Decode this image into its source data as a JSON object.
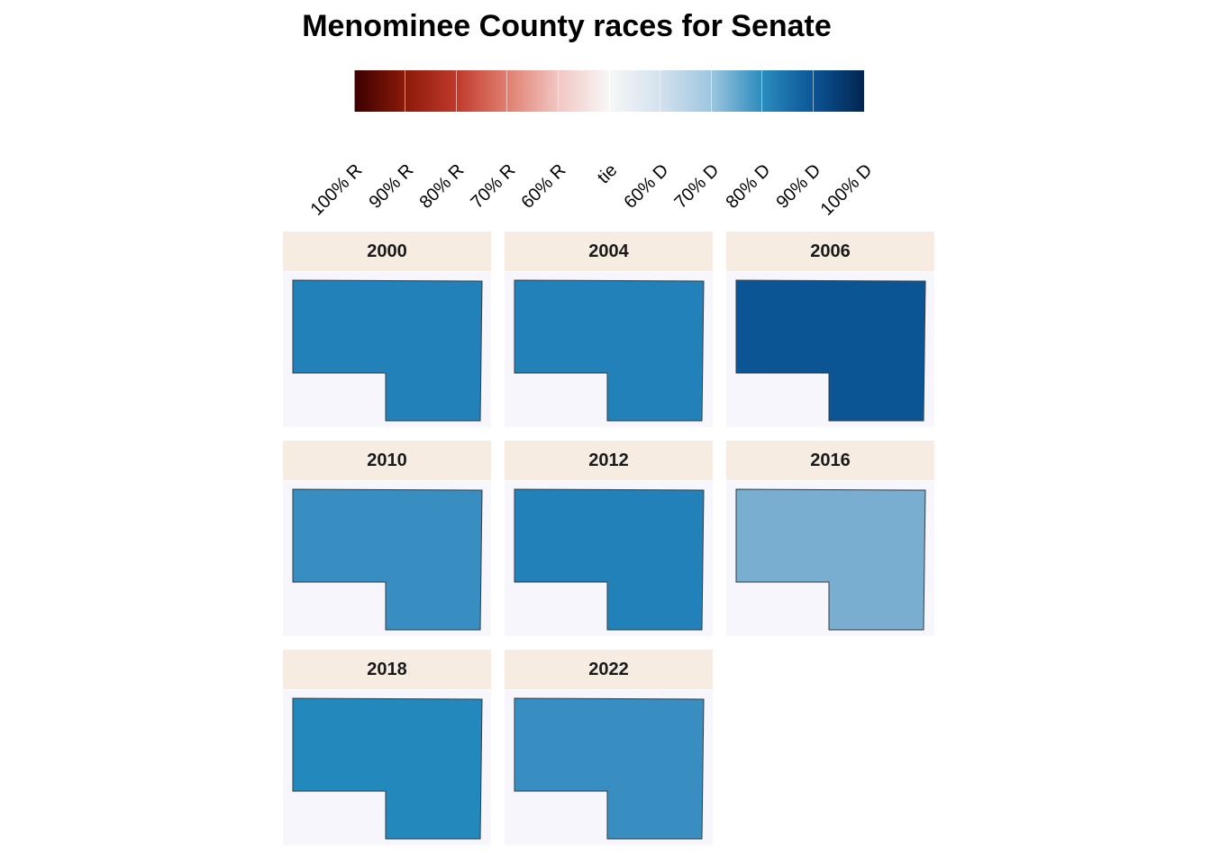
{
  "title": "Menominee County races for Senate",
  "legend": {
    "tick_labels": [
      "100% R",
      "90% R",
      "80% R",
      "70% R",
      "60% R",
      "tie",
      "60% D",
      "70% D",
      "80% D",
      "90% D",
      "100% D"
    ],
    "scale_colors": [
      "#3a0000",
      "#8b1a09",
      "#c0392b",
      "#e07f70",
      "#f1c6c2",
      "#f7f7f7",
      "#d3e2ee",
      "#9ec5df",
      "#2b8cbe",
      "#0b5596",
      "#022550"
    ]
  },
  "chart_data": {
    "type": "choropleth",
    "region": "Menominee County",
    "facets": [
      {
        "year": "2000",
        "color": "#2181b8"
      },
      {
        "year": "2004",
        "color": "#2181b8"
      },
      {
        "year": "2006",
        "color": "#0b5594"
      },
      {
        "year": "2010",
        "color": "#388ec0"
      },
      {
        "year": "2012",
        "color": "#2181b8"
      },
      {
        "year": "2016",
        "color": "#7aaed1"
      },
      {
        "year": "2018",
        "color": "#2389bc"
      },
      {
        "year": "2022",
        "color": "#388ec0"
      }
    ]
  }
}
